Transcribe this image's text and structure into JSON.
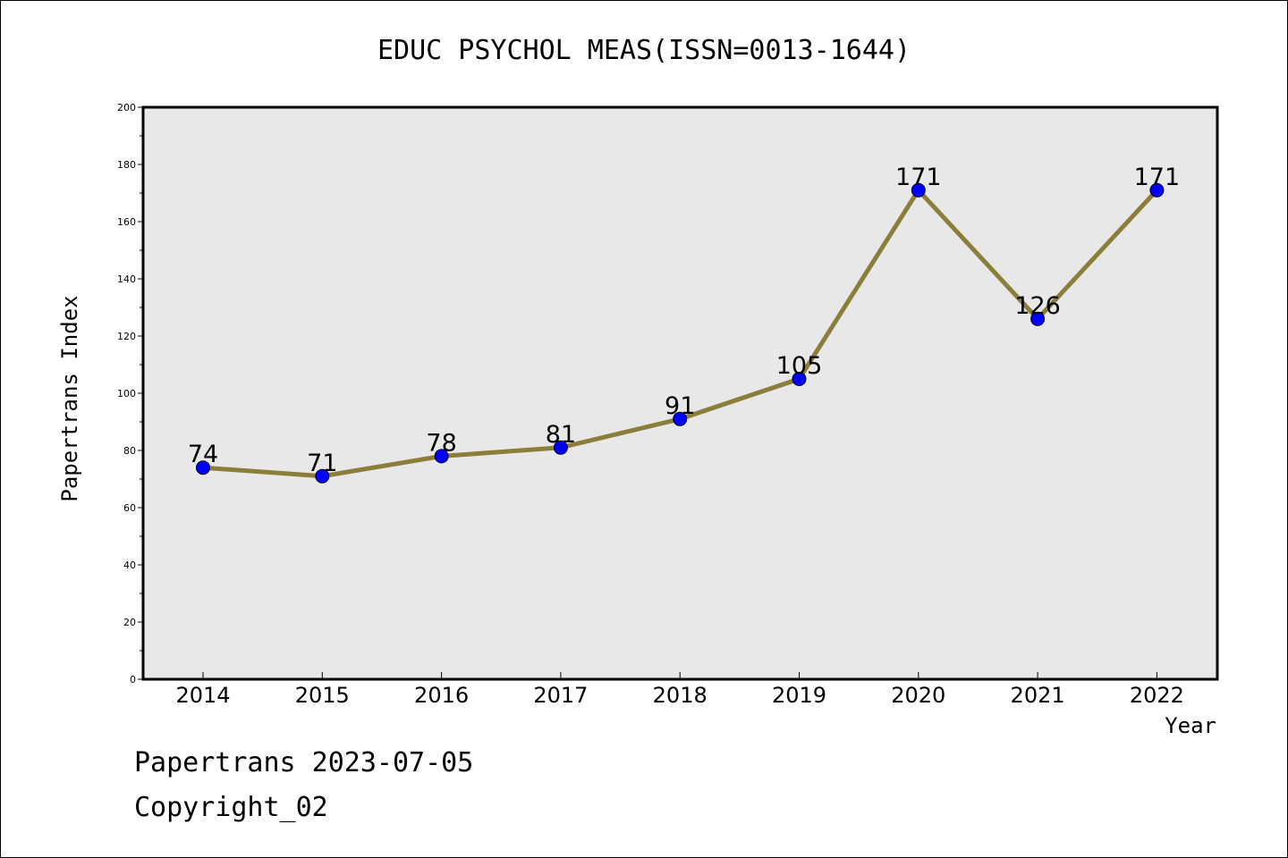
{
  "chart_data": {
    "type": "line",
    "title": "EDUC PSYCHOL MEAS(ISSN=0013-1644)",
    "xlabel": "Year",
    "ylabel": "Papertrans Index",
    "x": [
      "2014",
      "2015",
      "2016",
      "2017",
      "2018",
      "2019",
      "2020",
      "2021",
      "2022"
    ],
    "series": [
      {
        "values": [
          74,
          71,
          78,
          81,
          91,
          105,
          171,
          126,
          171
        ],
        "data_labels": [
          "74",
          "71",
          "78",
          "81",
          "91",
          "105",
          "171",
          "126",
          "171"
        ]
      }
    ],
    "ylim": [
      0,
      200
    ],
    "yticks": [
      "0",
      "20",
      "40",
      "60",
      "80",
      "100",
      "120",
      "140",
      "160",
      "180",
      "200"
    ],
    "grid": false,
    "legend": "none"
  },
  "colors": {
    "line": "#8b7d3a",
    "marker": "#0000ff",
    "plot_background": "#e8e8e8"
  },
  "footer": {
    "line1": "Papertrans 2023-07-05",
    "line2": "Copyright_02"
  }
}
